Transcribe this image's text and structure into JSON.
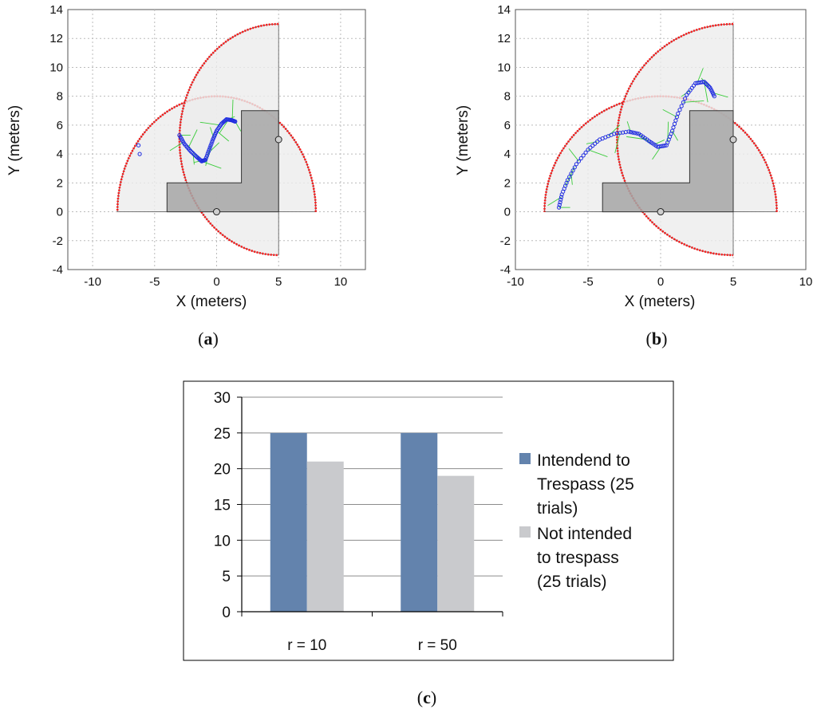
{
  "colors": {
    "sector_fill": "#ececec",
    "sector_edge": "#ff1a1a",
    "building": "#a6a6a6",
    "track": "#1f2ce0",
    "green": "#3ccc3c",
    "bar_series1": "#6383ad",
    "bar_series2": "#c9cacd",
    "grid": "#bbbbbb"
  },
  "chart_data": [
    {
      "panel": "a",
      "type": "scatter",
      "caption": {
        "open": "(",
        "letter": "a",
        "close": ")"
      },
      "xlabel": "X (meters)",
      "ylabel": "Y (meters)",
      "xlim": [
        -12,
        12
      ],
      "ylim": [
        -4,
        14
      ],
      "xticks": [
        -10,
        -5,
        0,
        5,
        10
      ],
      "yticks": [
        -4,
        -2,
        0,
        2,
        4,
        6,
        8,
        10,
        12,
        14
      ],
      "grid": true,
      "sensors": [
        {
          "center": [
            0,
            0
          ],
          "radius": 8,
          "start_deg": 0,
          "end_deg": 180
        },
        {
          "center": [
            5,
            5
          ],
          "radius": 8,
          "start_deg": 90,
          "end_deg": 270
        }
      ],
      "building": [
        [
          -4,
          0
        ],
        [
          -4,
          2
        ],
        [
          2,
          2
        ],
        [
          2,
          7
        ],
        [
          5,
          7
        ],
        [
          5,
          0
        ]
      ],
      "track": [
        [
          -3,
          5.3
        ],
        [
          -2.6,
          4.7
        ],
        [
          -2.1,
          4.2
        ],
        [
          -1.6,
          3.8
        ],
        [
          -1.2,
          3.5
        ],
        [
          -0.9,
          3.6
        ],
        [
          -0.6,
          4.3
        ],
        [
          -0.3,
          5.0
        ],
        [
          0,
          5.6
        ],
        [
          0.4,
          6.1
        ],
        [
          0.8,
          6.4
        ],
        [
          1.2,
          6.35
        ],
        [
          1.5,
          6.25
        ]
      ],
      "outlier_points": [
        [
          -6.3,
          4.6
        ],
        [
          -6.2,
          4.0
        ]
      ],
      "sensor_markers": [
        [
          0,
          0
        ],
        [
          5,
          5
        ]
      ]
    },
    {
      "panel": "b",
      "type": "scatter",
      "caption": {
        "open": "(",
        "letter": "b",
        "close": ")"
      },
      "xlabel": "X (meters)",
      "ylabel": "Y (meters)",
      "xlim": [
        -10,
        10
      ],
      "ylim": [
        -4,
        14
      ],
      "xticks": [
        -10,
        -5,
        0,
        5,
        10
      ],
      "yticks": [
        -4,
        -2,
        0,
        2,
        4,
        6,
        8,
        10,
        12,
        14
      ],
      "grid": true,
      "sensors": [
        {
          "center": [
            0,
            0
          ],
          "radius": 8,
          "start_deg": 0,
          "end_deg": 180
        },
        {
          "center": [
            5,
            5
          ],
          "radius": 8,
          "start_deg": 90,
          "end_deg": 270
        }
      ],
      "building": [
        [
          -4,
          0
        ],
        [
          -4,
          2
        ],
        [
          2,
          2
        ],
        [
          2,
          7
        ],
        [
          5,
          7
        ],
        [
          5,
          0
        ]
      ],
      "track": [
        [
          -7,
          0.3
        ],
        [
          -6.8,
          1.2
        ],
        [
          -6.4,
          2.2
        ],
        [
          -5.8,
          3.3
        ],
        [
          -5,
          4.3
        ],
        [
          -4.2,
          5.0
        ],
        [
          -3.2,
          5.4
        ],
        [
          -2.2,
          5.55
        ],
        [
          -1.5,
          5.4
        ],
        [
          -0.8,
          4.9
        ],
        [
          -0.2,
          4.5
        ],
        [
          0.4,
          4.6
        ],
        [
          0.8,
          5.6
        ],
        [
          1.2,
          6.8
        ],
        [
          1.8,
          8.1
        ],
        [
          2.4,
          8.9
        ],
        [
          3.0,
          9.0
        ],
        [
          3.4,
          8.6
        ],
        [
          3.7,
          8.0
        ]
      ],
      "outlier_points": [],
      "sensor_markers": [
        [
          0,
          0
        ],
        [
          5,
          5
        ]
      ]
    },
    {
      "panel": "c",
      "type": "bar",
      "caption": {
        "open": "(",
        "letter": "c",
        "close": ")"
      },
      "categories": [
        "r = 10",
        "r = 50"
      ],
      "series": [
        {
          "name": "Intendend to Trespass (25 trials)",
          "legend_lines": [
            "Intendend to",
            "Trespass (25",
            "trials)"
          ],
          "values": [
            25,
            25
          ]
        },
        {
          "name": "Not intended to trespass (25 trials)",
          "legend_lines": [
            "Not intended",
            "to trespass",
            "(25 trials)"
          ],
          "values": [
            21,
            19
          ]
        }
      ],
      "ylim": [
        0,
        30
      ],
      "yticks": [
        0,
        5,
        10,
        15,
        20,
        25,
        30
      ],
      "grid": true,
      "legend": "right"
    }
  ]
}
